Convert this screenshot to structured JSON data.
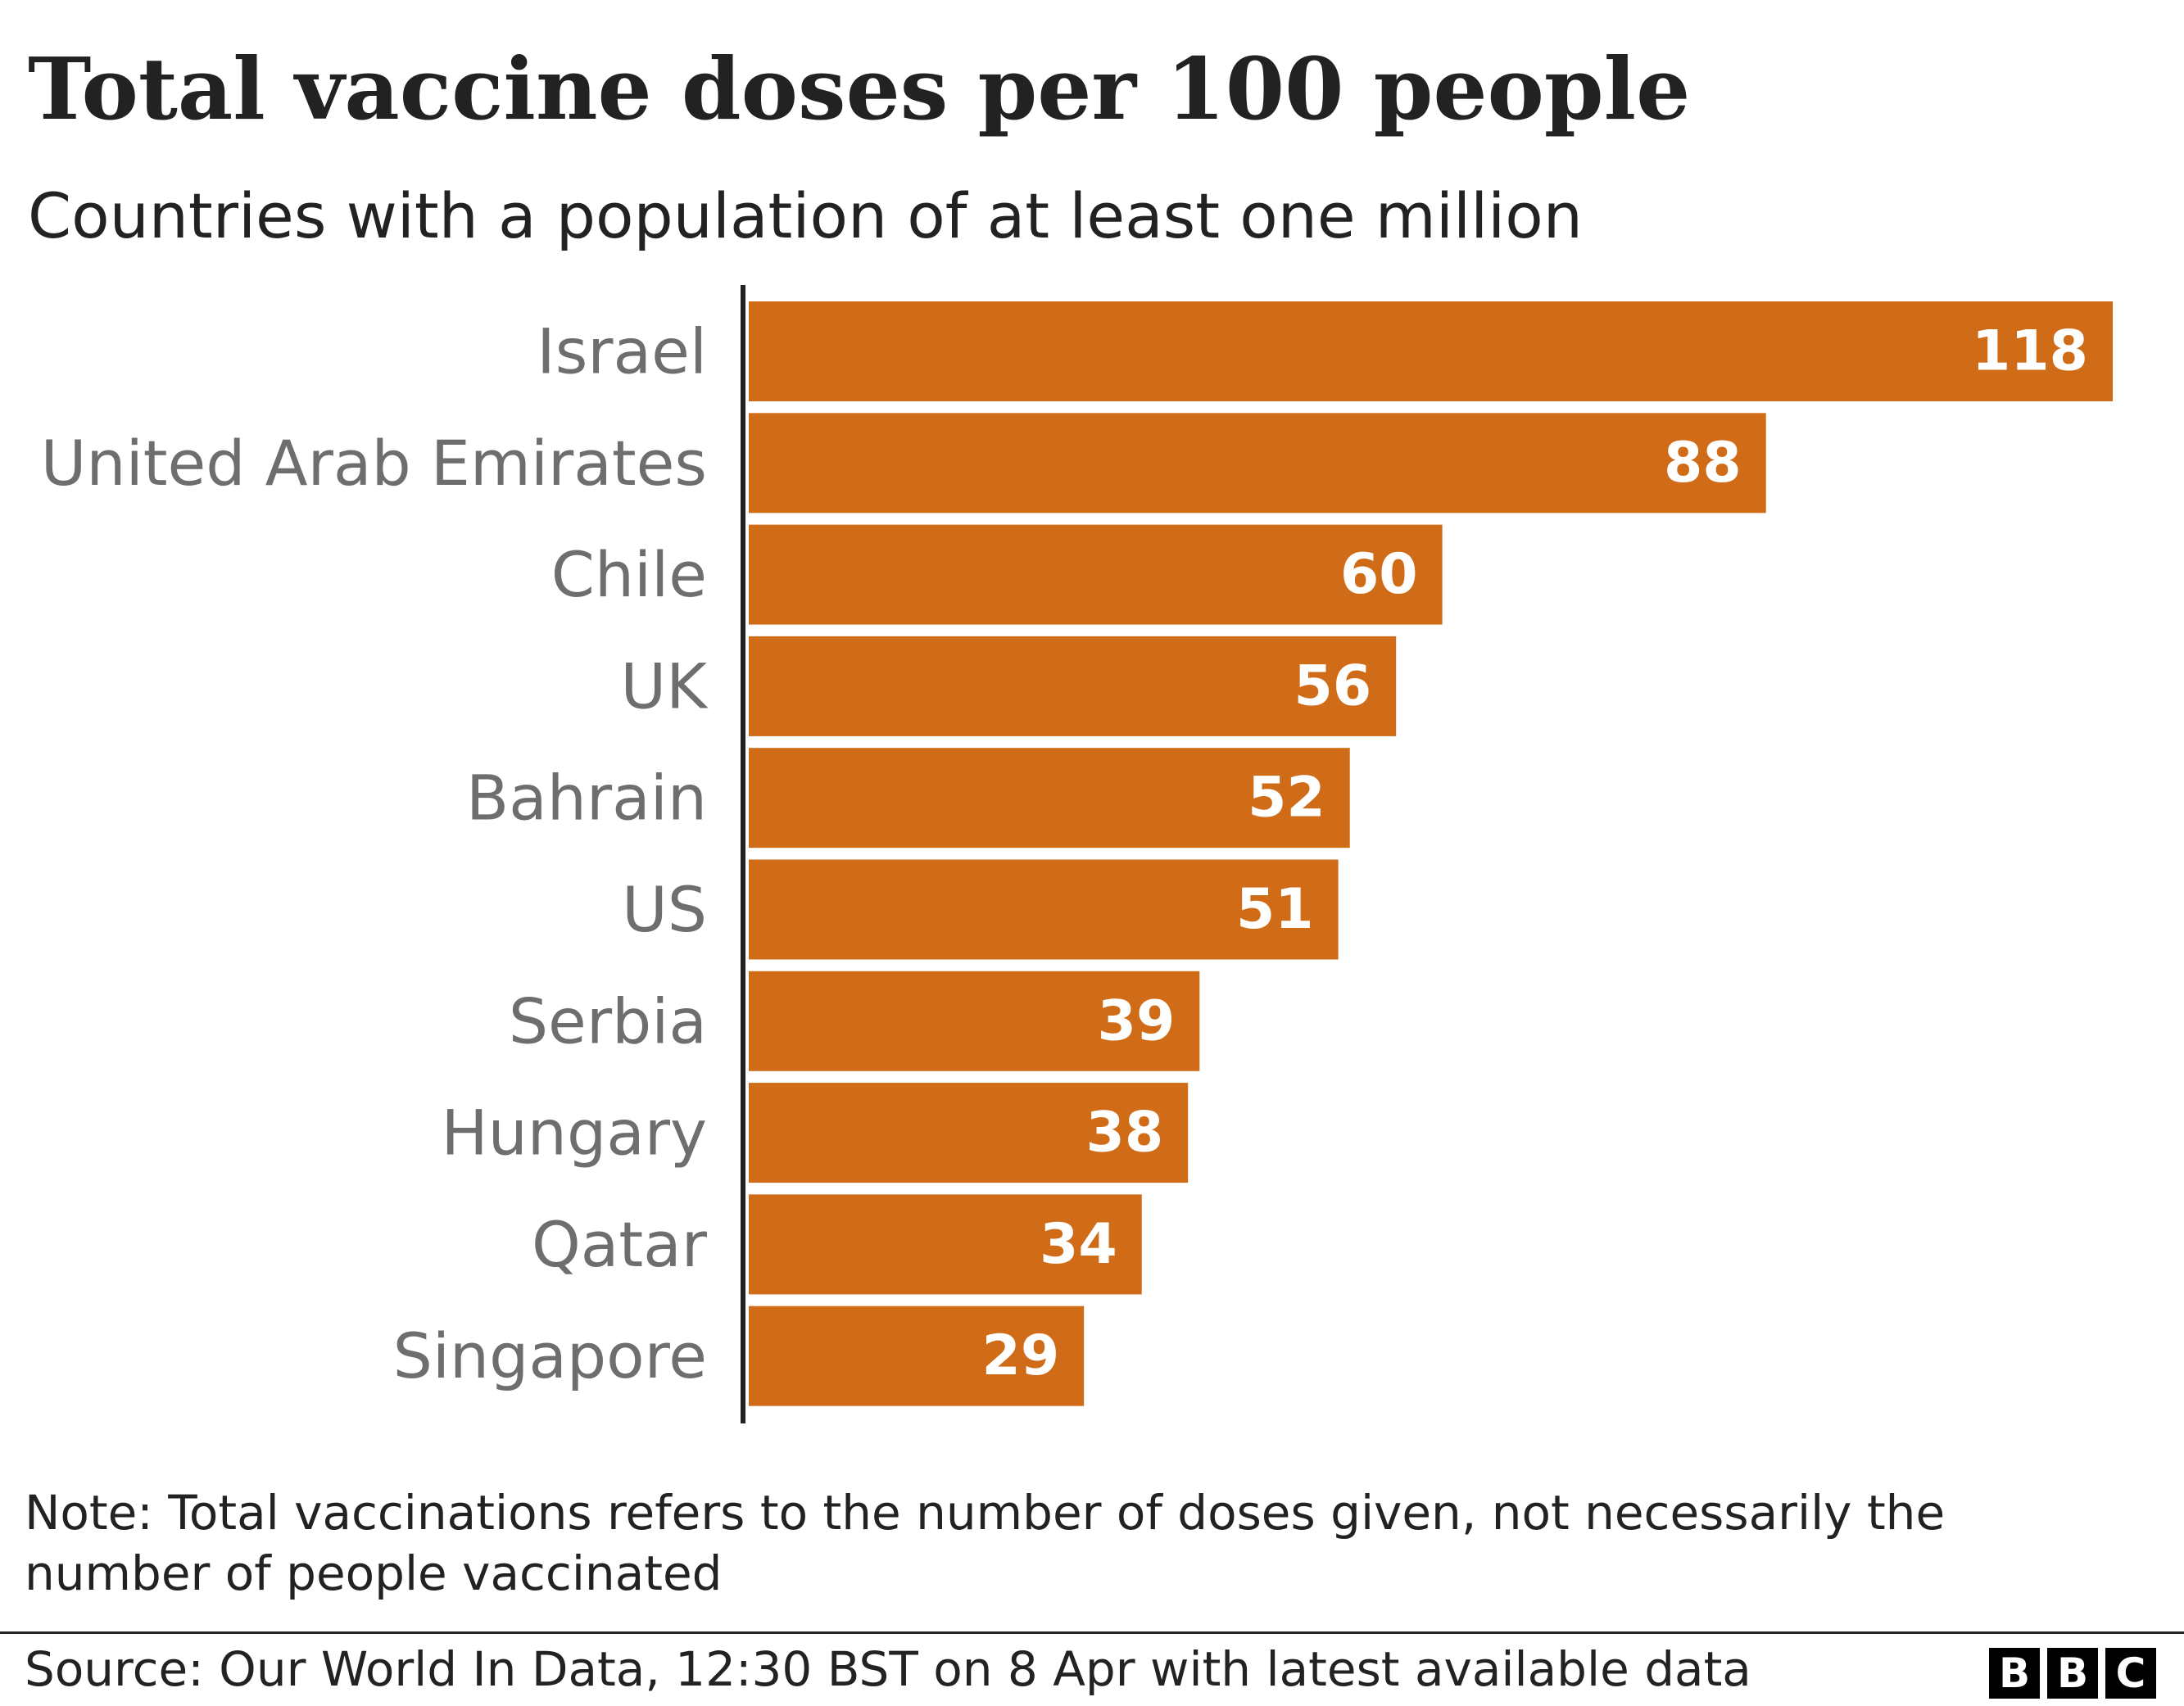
{
  "header": {
    "title": "Total vaccine doses per 100 people",
    "subtitle": "Countries with a population of at least one million"
  },
  "chart_data": {
    "type": "bar",
    "orientation": "horizontal",
    "title": "Total vaccine doses per 100 people",
    "subtitle": "Countries with a population of at least one million",
    "categories": [
      "Israel",
      "United Arab Emirates",
      "Chile",
      "UK",
      "Bahrain",
      "US",
      "Serbia",
      "Hungary",
      "Qatar",
      "Singapore"
    ],
    "values": [
      118,
      88,
      60,
      56,
      52,
      51,
      39,
      38,
      34,
      29
    ],
    "data_labels": [
      "118",
      "88",
      "60",
      "56",
      "52",
      "51",
      "39",
      "38",
      "34",
      "29"
    ],
    "xlim": [
      0,
      120
    ],
    "grid": false,
    "legend": "none",
    "bar_color": "#d06c17"
  },
  "footer": {
    "note": "Note: Total vaccinations refers to the number of doses given, not necessarily the number of people vaccinated",
    "source": "Source: Our World In Data, 12:30 BST on 8 Apr with latest available data",
    "logo_letters": [
      "B",
      "B",
      "C"
    ]
  },
  "colors": {
    "bar": "#d06c17",
    "axis": "#222222",
    "category_text": "#6e6e6e",
    "value_text": "#ffffff",
    "text": "#222222"
  }
}
